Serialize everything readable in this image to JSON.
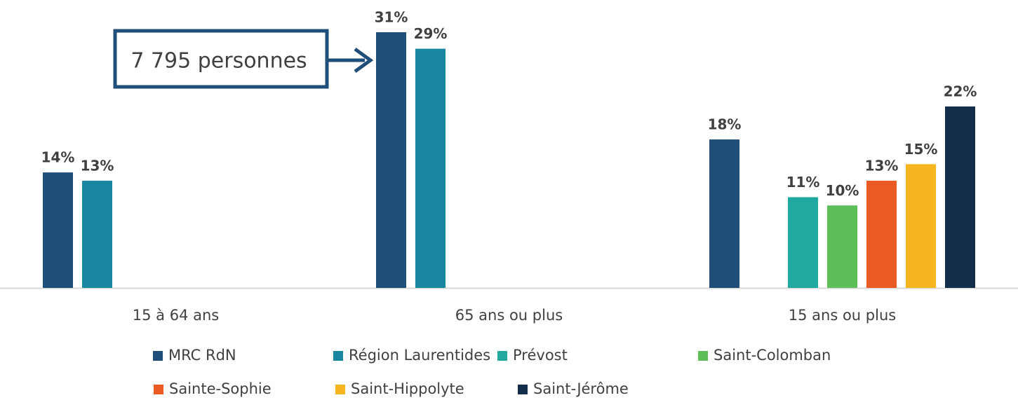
{
  "chart_data": {
    "type": "bar",
    "categories": [
      "15 à 64 ans",
      "65 ans ou plus",
      "15 ans ou plus"
    ],
    "series": [
      {
        "name": "MRC RdN",
        "color": "#1f4e79",
        "values": [
          14,
          31,
          18
        ],
        "value_labels": [
          "14%",
          "31%",
          "18%"
        ]
      },
      {
        "name": "Région Laurentides",
        "color": "#1a87a0",
        "values": [
          13,
          29,
          null
        ],
        "value_labels": [
          "13%",
          "29%",
          null
        ]
      },
      {
        "name": "Prévost",
        "color": "#1fa9a0",
        "values": [
          null,
          null,
          11
        ],
        "value_labels": [
          null,
          null,
          "11%"
        ]
      },
      {
        "name": "Saint-Colomban",
        "color": "#5cbf5a",
        "values": [
          null,
          null,
          10
        ],
        "value_labels": [
          null,
          null,
          "10%"
        ]
      },
      {
        "name": "Sainte-Sophie",
        "color": "#ea5a24",
        "values": [
          null,
          null,
          13
        ],
        "value_labels": [
          null,
          null,
          "13%"
        ]
      },
      {
        "name": "Saint-Hippolyte",
        "color": "#f7b51f",
        "values": [
          null,
          null,
          15
        ],
        "value_labels": [
          null,
          null,
          "15%"
        ]
      },
      {
        "name": "Saint-Jérôme",
        "color": "#142d4a",
        "values": [
          null,
          null,
          22
        ],
        "value_labels": [
          null,
          null,
          "22%"
        ]
      }
    ],
    "annotation": "7 795 personnes"
  }
}
